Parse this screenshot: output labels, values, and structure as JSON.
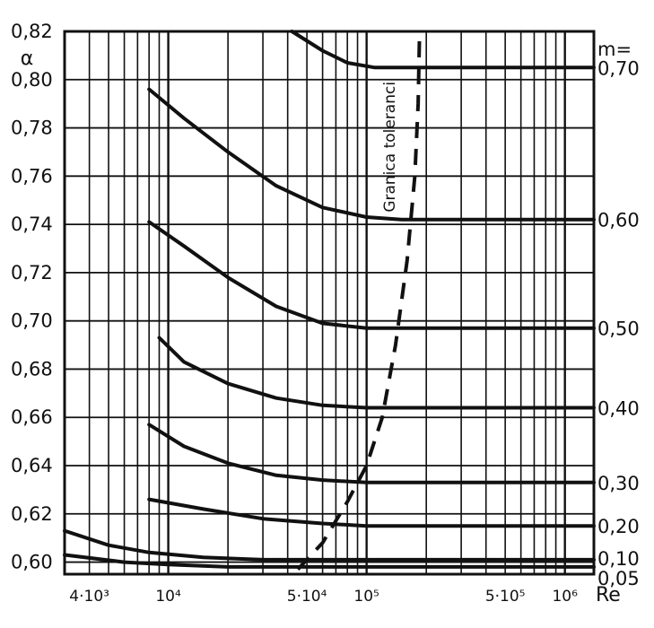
{
  "chart_data": {
    "type": "line",
    "title": "",
    "xlabel": "Re",
    "ylabel": "α",
    "xscale": "log",
    "xlim": [
      3000,
      1400000
    ],
    "ylim": [
      0.595,
      0.82
    ],
    "grid": true,
    "y_ticks": [
      {
        "value": 0.6,
        "label": "0,60"
      },
      {
        "value": 0.62,
        "label": "0,62"
      },
      {
        "value": 0.64,
        "label": "0,64"
      },
      {
        "value": 0.66,
        "label": "0,66"
      },
      {
        "value": 0.68,
        "label": "0,68"
      },
      {
        "value": 0.7,
        "label": "0,70"
      },
      {
        "value": 0.72,
        "label": "0,72"
      },
      {
        "value": 0.74,
        "label": "0,74"
      },
      {
        "value": 0.76,
        "label": "0,76"
      },
      {
        "value": 0.78,
        "label": "0,78"
      },
      {
        "value": 0.8,
        "label": "0,80"
      },
      {
        "value": 0.82,
        "label": "0,82"
      }
    ],
    "x_ticks": [
      {
        "value": 4000,
        "label": "4·10³"
      },
      {
        "value": 10000,
        "label": "10⁴"
      },
      {
        "value": 50000,
        "label": "5·10⁴"
      },
      {
        "value": 100000,
        "label": "10⁵"
      },
      {
        "value": 500000,
        "label": "5·10⁵"
      },
      {
        "value": 1000000,
        "label": "10⁶"
      }
    ],
    "m_header": "m=",
    "series": [
      {
        "name": "0,70",
        "points": [
          [
            42000,
            0.82
          ],
          [
            60000,
            0.812
          ],
          [
            80000,
            0.807
          ],
          [
            110000,
            0.805
          ],
          [
            1400000,
            0.805
          ]
        ]
      },
      {
        "name": "0,60",
        "points": [
          [
            8000,
            0.796
          ],
          [
            12000,
            0.784
          ],
          [
            20000,
            0.77
          ],
          [
            35000,
            0.756
          ],
          [
            60000,
            0.747
          ],
          [
            100000,
            0.743
          ],
          [
            150000,
            0.742
          ],
          [
            1400000,
            0.742
          ]
        ]
      },
      {
        "name": "0,50",
        "points": [
          [
            8000,
            0.741
          ],
          [
            12000,
            0.731
          ],
          [
            20000,
            0.718
          ],
          [
            35000,
            0.706
          ],
          [
            60000,
            0.699
          ],
          [
            100000,
            0.697
          ],
          [
            1400000,
            0.697
          ]
        ]
      },
      {
        "name": "0,40",
        "points": [
          [
            9000,
            0.693
          ],
          [
            12000,
            0.683
          ],
          [
            20000,
            0.674
          ],
          [
            35000,
            0.668
          ],
          [
            60000,
            0.665
          ],
          [
            100000,
            0.664
          ],
          [
            1400000,
            0.664
          ]
        ]
      },
      {
        "name": "0,30",
        "points": [
          [
            8000,
            0.657
          ],
          [
            12000,
            0.648
          ],
          [
            20000,
            0.641
          ],
          [
            35000,
            0.636
          ],
          [
            60000,
            0.634
          ],
          [
            100000,
            0.633
          ],
          [
            1400000,
            0.633
          ]
        ]
      },
      {
        "name": "0,20",
        "points": [
          [
            8000,
            0.626
          ],
          [
            15000,
            0.622
          ],
          [
            30000,
            0.618
          ],
          [
            60000,
            0.616
          ],
          [
            100000,
            0.615
          ],
          [
            1400000,
            0.615
          ]
        ]
      },
      {
        "name": "0,10",
        "points": [
          [
            3000,
            0.613
          ],
          [
            5000,
            0.607
          ],
          [
            8000,
            0.604
          ],
          [
            15000,
            0.602
          ],
          [
            30000,
            0.601
          ],
          [
            1400000,
            0.601
          ]
        ]
      },
      {
        "name": "0,05",
        "points": [
          [
            3000,
            0.603
          ],
          [
            6000,
            0.6
          ],
          [
            10000,
            0.599
          ],
          [
            20000,
            0.598
          ],
          [
            1400000,
            0.598
          ]
        ]
      }
    ],
    "tolerance_boundary": {
      "label": "Granica toleranci",
      "points": [
        [
          45000,
          0.597
        ],
        [
          60000,
          0.608
        ],
        [
          80000,
          0.625
        ],
        [
          100000,
          0.64
        ],
        [
          120000,
          0.66
        ],
        [
          140000,
          0.69
        ],
        [
          160000,
          0.725
        ],
        [
          175000,
          0.76
        ],
        [
          182000,
          0.79
        ],
        [
          185000,
          0.82
        ]
      ]
    }
  }
}
